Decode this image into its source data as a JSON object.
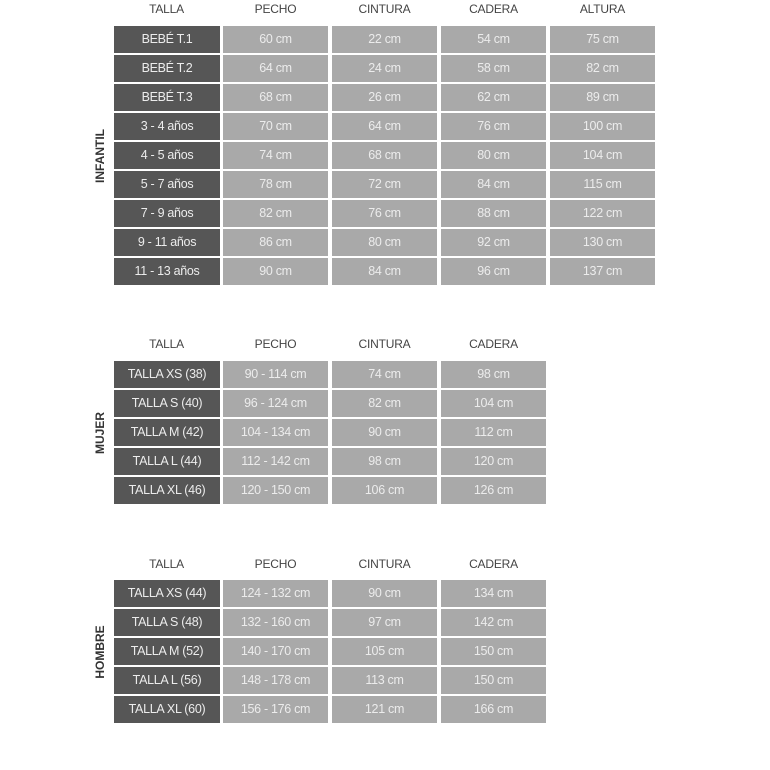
{
  "colors": {
    "size_cell": "#565656",
    "value_cell": "#a9a9a9",
    "cell_text": "#ececec",
    "header_text": "#444444"
  },
  "sections": [
    {
      "label": "INFANTIL",
      "headers": [
        "TALLA",
        "PECHO",
        "CINTURA",
        "CADERA",
        "ALTURA"
      ],
      "rows": [
        [
          "BEBÉ T.1",
          "60 cm",
          "22 cm",
          "54 cm",
          "75 cm"
        ],
        [
          "BEBÉ T.2",
          "64 cm",
          "24 cm",
          "58 cm",
          "82 cm"
        ],
        [
          "BEBÉ T.3",
          "68 cm",
          "26 cm",
          "62 cm",
          "89 cm"
        ],
        [
          "3 - 4 años",
          "70 cm",
          "64 cm",
          "76 cm",
          "100 cm"
        ],
        [
          "4 - 5 años",
          "74 cm",
          "68 cm",
          "80 cm",
          "104 cm"
        ],
        [
          "5 - 7 años",
          "78 cm",
          "72 cm",
          "84 cm",
          "115 cm"
        ],
        [
          "7 - 9 años",
          "82 cm",
          "76 cm",
          "88 cm",
          "122 cm"
        ],
        [
          "9 - 11 años",
          "86 cm",
          "80 cm",
          "92 cm",
          "130 cm"
        ],
        [
          "11 - 13 años",
          "90 cm",
          "84 cm",
          "96 cm",
          "137 cm"
        ]
      ]
    },
    {
      "label": "MUJER",
      "headers": [
        "TALLA",
        "PECHO",
        "CINTURA",
        "CADERA"
      ],
      "rows": [
        [
          "TALLA XS (38)",
          "90 - 114 cm",
          "74 cm",
          "98 cm"
        ],
        [
          "TALLA S (40)",
          "96 - 124 cm",
          "82 cm",
          "104 cm"
        ],
        [
          "TALLA M (42)",
          "104 - 134 cm",
          "90 cm",
          "112 cm"
        ],
        [
          "TALLA L (44)",
          "112 - 142 cm",
          "98 cm",
          "120 cm"
        ],
        [
          "TALLA XL (46)",
          "120 - 150 cm",
          "106 cm",
          "126 cm"
        ]
      ]
    },
    {
      "label": "HOMBRE",
      "headers": [
        "TALLA",
        "PECHO",
        "CINTURA",
        "CADERA"
      ],
      "rows": [
        [
          "TALLA XS (44)",
          "124 - 132 cm",
          "90 cm",
          "134 cm"
        ],
        [
          "TALLA S (48)",
          "132 - 160 cm",
          "97 cm",
          "142 cm"
        ],
        [
          "TALLA M (52)",
          "140 - 170 cm",
          "105 cm",
          "150 cm"
        ],
        [
          "TALLA L (56)",
          "148 - 178 cm",
          "113 cm",
          "150 cm"
        ],
        [
          "TALLA XL (60)",
          "156 - 176 cm",
          "121 cm",
          "166 cm"
        ]
      ]
    }
  ]
}
